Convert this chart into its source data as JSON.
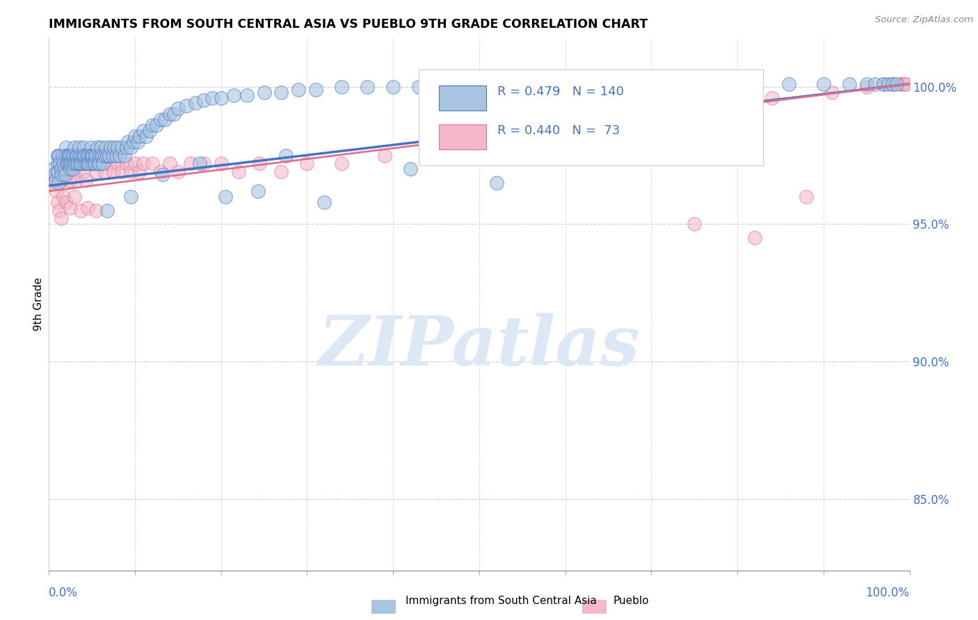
{
  "title": "IMMIGRANTS FROM SOUTH CENTRAL ASIA VS PUEBLO 9TH GRADE CORRELATION CHART",
  "source_text": "Source: ZipAtlas.com",
  "ylabel": "9th Grade",
  "yaxis_values": [
    0.85,
    0.9,
    0.95,
    1.0
  ],
  "yaxis_labels": [
    "85.0%",
    "90.0%",
    "95.0%",
    "100.0%"
  ],
  "xlim": [
    0.0,
    1.0
  ],
  "ylim": [
    0.824,
    1.018
  ],
  "legend_blue_R": "0.479",
  "legend_blue_N": "140",
  "legend_pink_R": "0.440",
  "legend_pink_N": "73",
  "legend_label_blue": "Immigrants from South Central Asia",
  "legend_label_pink": "Pueblo",
  "blue_color": "#a8c4e0",
  "blue_line_color": "#4472c4",
  "pink_color": "#f4b8c8",
  "pink_line_color": "#e07090",
  "text_color_blue": "#4472c4",
  "watermark_text": "ZIPatlas",
  "watermark_color": "#dce8f5",
  "grid_color": "#cccccc",
  "background_color": "#ffffff",
  "blue_scatter_x": [
    0.005,
    0.007,
    0.008,
    0.01,
    0.01,
    0.01,
    0.011,
    0.012,
    0.013,
    0.014,
    0.015,
    0.016,
    0.017,
    0.018,
    0.019,
    0.02,
    0.02,
    0.021,
    0.022,
    0.022,
    0.023,
    0.024,
    0.025,
    0.025,
    0.026,
    0.027,
    0.028,
    0.028,
    0.029,
    0.03,
    0.03,
    0.031,
    0.032,
    0.033,
    0.034,
    0.035,
    0.035,
    0.036,
    0.037,
    0.038,
    0.039,
    0.04,
    0.04,
    0.041,
    0.042,
    0.043,
    0.044,
    0.045,
    0.046,
    0.047,
    0.048,
    0.049,
    0.05,
    0.05,
    0.051,
    0.052,
    0.053,
    0.054,
    0.055,
    0.056,
    0.057,
    0.058,
    0.059,
    0.06,
    0.06,
    0.062,
    0.063,
    0.065,
    0.066,
    0.068,
    0.07,
    0.072,
    0.074,
    0.076,
    0.078,
    0.08,
    0.082,
    0.085,
    0.088,
    0.09,
    0.092,
    0.095,
    0.098,
    0.1,
    0.103,
    0.106,
    0.11,
    0.113,
    0.117,
    0.12,
    0.125,
    0.13,
    0.135,
    0.14,
    0.145,
    0.15,
    0.16,
    0.17,
    0.18,
    0.19,
    0.2,
    0.215,
    0.23,
    0.25,
    0.27,
    0.29,
    0.31,
    0.34,
    0.37,
    0.4,
    0.43,
    0.46,
    0.5,
    0.54,
    0.58,
    0.62,
    0.66,
    0.7,
    0.74,
    0.78,
    0.82,
    0.86,
    0.9,
    0.93,
    0.95,
    0.96,
    0.97,
    0.975,
    0.98,
    0.985,
    0.243,
    0.32,
    0.52,
    0.275,
    0.175,
    0.42,
    0.068,
    0.095,
    0.132,
    0.205
  ],
  "blue_scatter_y": [
    0.97,
    0.968,
    0.966,
    0.975,
    0.972,
    0.969,
    0.965,
    0.975,
    0.972,
    0.97,
    0.968,
    0.975,
    0.972,
    0.97,
    0.968,
    0.978,
    0.975,
    0.972,
    0.975,
    0.972,
    0.975,
    0.972,
    0.97,
    0.975,
    0.972,
    0.975,
    0.972,
    0.97,
    0.975,
    0.978,
    0.972,
    0.975,
    0.972,
    0.975,
    0.972,
    0.975,
    0.978,
    0.972,
    0.975,
    0.972,
    0.975,
    0.975,
    0.978,
    0.972,
    0.975,
    0.972,
    0.975,
    0.972,
    0.975,
    0.972,
    0.975,
    0.978,
    0.975,
    0.972,
    0.975,
    0.972,
    0.975,
    0.972,
    0.975,
    0.978,
    0.972,
    0.975,
    0.972,
    0.975,
    0.978,
    0.975,
    0.972,
    0.975,
    0.978,
    0.975,
    0.975,
    0.978,
    0.975,
    0.978,
    0.975,
    0.978,
    0.975,
    0.978,
    0.975,
    0.978,
    0.98,
    0.978,
    0.98,
    0.982,
    0.98,
    0.982,
    0.984,
    0.982,
    0.984,
    0.986,
    0.986,
    0.988,
    0.988,
    0.99,
    0.99,
    0.992,
    0.993,
    0.994,
    0.995,
    0.996,
    0.996,
    0.997,
    0.997,
    0.998,
    0.998,
    0.999,
    0.999,
    1.0,
    1.0,
    1.0,
    1.0,
    1.001,
    1.001,
    1.001,
    1.001,
    1.001,
    1.001,
    1.001,
    1.001,
    1.001,
    1.001,
    1.001,
    1.001,
    1.001,
    1.001,
    1.001,
    1.001,
    1.001,
    1.001,
    1.001,
    0.962,
    0.958,
    0.965,
    0.975,
    0.972,
    0.97,
    0.955,
    0.96,
    0.968,
    0.96
  ],
  "pink_scatter_x": [
    0.005,
    0.007,
    0.009,
    0.01,
    0.012,
    0.015,
    0.016,
    0.018,
    0.02,
    0.022,
    0.024,
    0.026,
    0.028,
    0.03,
    0.032,
    0.035,
    0.038,
    0.04,
    0.043,
    0.046,
    0.05,
    0.055,
    0.06,
    0.065,
    0.07,
    0.075,
    0.08,
    0.085,
    0.09,
    0.095,
    0.1,
    0.105,
    0.11,
    0.12,
    0.13,
    0.14,
    0.15,
    0.165,
    0.18,
    0.2,
    0.22,
    0.245,
    0.27,
    0.3,
    0.34,
    0.39,
    0.45,
    0.52,
    0.6,
    0.68,
    0.76,
    0.84,
    0.91,
    0.95,
    0.97,
    0.98,
    0.99,
    0.992,
    0.994,
    0.996,
    0.01,
    0.012,
    0.014,
    0.017,
    0.02,
    0.025,
    0.03,
    0.037,
    0.045,
    0.055,
    0.75,
    0.82,
    0.88
  ],
  "pink_scatter_y": [
    0.968,
    0.965,
    0.962,
    0.975,
    0.972,
    0.969,
    0.966,
    0.975,
    0.972,
    0.969,
    0.966,
    0.975,
    0.972,
    0.969,
    0.966,
    0.975,
    0.972,
    0.969,
    0.966,
    0.975,
    0.972,
    0.969,
    0.972,
    0.969,
    0.972,
    0.969,
    0.972,
    0.969,
    0.972,
    0.969,
    0.972,
    0.969,
    0.972,
    0.972,
    0.969,
    0.972,
    0.969,
    0.972,
    0.972,
    0.972,
    0.969,
    0.972,
    0.969,
    0.972,
    0.972,
    0.975,
    0.978,
    0.982,
    0.986,
    0.99,
    0.993,
    0.996,
    0.998,
    1.0,
    1.001,
    1.001,
    1.001,
    1.001,
    1.001,
    1.001,
    0.958,
    0.955,
    0.952,
    0.96,
    0.958,
    0.956,
    0.96,
    0.955,
    0.956,
    0.955,
    0.95,
    0.945,
    0.96
  ]
}
